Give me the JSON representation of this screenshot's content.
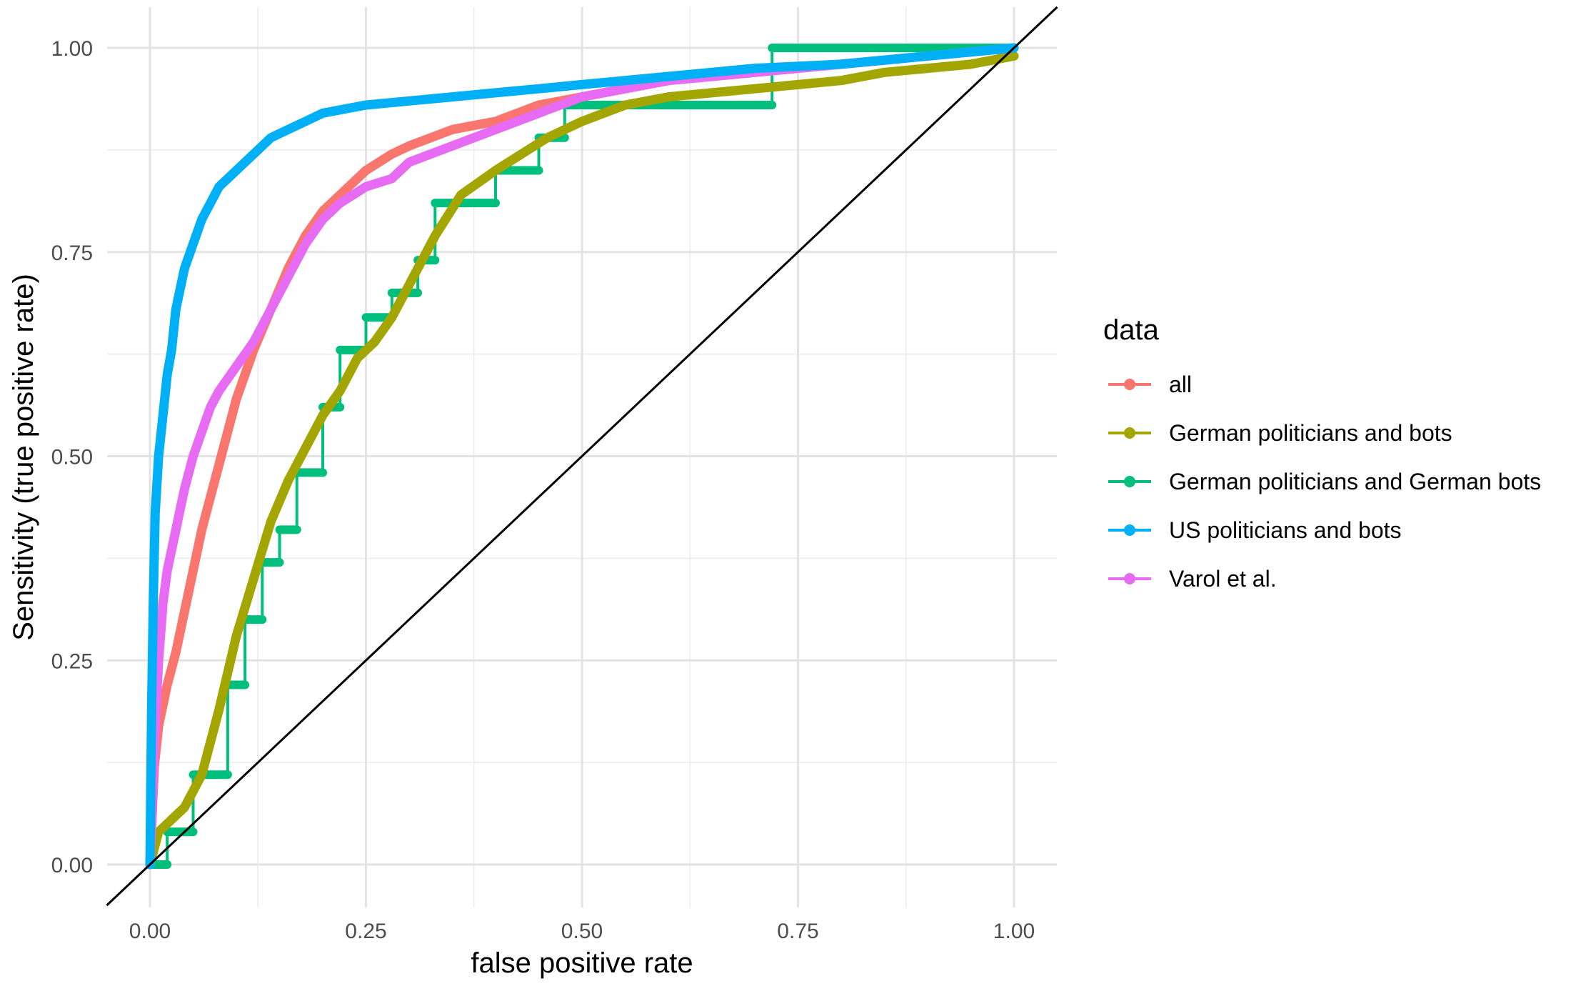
{
  "chart_data": {
    "type": "line",
    "title": "",
    "xlabel": "false positive rate",
    "ylabel": "Sensitivity (true positive rate)",
    "xlim": [
      0,
      1
    ],
    "ylim": [
      0,
      1
    ],
    "xticks": [
      "0.00",
      "0.25",
      "0.50",
      "0.75",
      "1.00"
    ],
    "yticks": [
      "0.00",
      "0.25",
      "0.50",
      "0.75",
      "1.00"
    ],
    "grid": true,
    "legend": {
      "title": "data",
      "position": "right"
    },
    "reference_line": {
      "label": "",
      "x": [
        0,
        1
      ],
      "y": [
        0,
        1
      ]
    },
    "series": [
      {
        "name": "all",
        "color": "#F8766D",
        "x": [
          0,
          0.005,
          0.01,
          0.02,
          0.03,
          0.04,
          0.05,
          0.06,
          0.07,
          0.08,
          0.09,
          0.1,
          0.12,
          0.14,
          0.16,
          0.18,
          0.2,
          0.22,
          0.25,
          0.28,
          0.3,
          0.35,
          0.4,
          0.45,
          0.5,
          0.6,
          0.7,
          0.8,
          0.9,
          1.0
        ],
        "y": [
          0,
          0.12,
          0.17,
          0.22,
          0.26,
          0.31,
          0.36,
          0.41,
          0.45,
          0.49,
          0.53,
          0.57,
          0.63,
          0.68,
          0.73,
          0.77,
          0.8,
          0.82,
          0.85,
          0.87,
          0.88,
          0.9,
          0.91,
          0.93,
          0.94,
          0.96,
          0.97,
          0.98,
          0.99,
          1.0
        ]
      },
      {
        "name": "German politicians and bots",
        "color": "#A3A500",
        "x": [
          0,
          0.01,
          0.02,
          0.04,
          0.06,
          0.08,
          0.1,
          0.12,
          0.14,
          0.16,
          0.18,
          0.2,
          0.22,
          0.24,
          0.26,
          0.28,
          0.3,
          0.33,
          0.36,
          0.4,
          0.43,
          0.46,
          0.5,
          0.55,
          0.6,
          0.65,
          0.7,
          0.75,
          0.8,
          0.85,
          0.9,
          0.95,
          1.0
        ],
        "y": [
          0,
          0.04,
          0.05,
          0.07,
          0.11,
          0.19,
          0.28,
          0.35,
          0.42,
          0.47,
          0.51,
          0.55,
          0.58,
          0.62,
          0.64,
          0.67,
          0.71,
          0.77,
          0.82,
          0.85,
          0.87,
          0.89,
          0.91,
          0.93,
          0.94,
          0.945,
          0.95,
          0.955,
          0.96,
          0.97,
          0.975,
          0.98,
          0.99
        ]
      },
      {
        "name": "German politicians and German bots",
        "color": "#00BF7D",
        "x": [
          0,
          0.02,
          0.02,
          0.05,
          0.05,
          0.09,
          0.09,
          0.11,
          0.11,
          0.13,
          0.13,
          0.15,
          0.15,
          0.17,
          0.17,
          0.2,
          0.2,
          0.22,
          0.22,
          0.25,
          0.25,
          0.28,
          0.28,
          0.31,
          0.31,
          0.33,
          0.33,
          0.4,
          0.4,
          0.45,
          0.45,
          0.48,
          0.48,
          0.72,
          0.72,
          1.0
        ],
        "y": [
          0,
          0,
          0.04,
          0.04,
          0.11,
          0.11,
          0.22,
          0.22,
          0.3,
          0.3,
          0.37,
          0.37,
          0.41,
          0.41,
          0.48,
          0.48,
          0.56,
          0.56,
          0.63,
          0.63,
          0.67,
          0.67,
          0.7,
          0.7,
          0.74,
          0.74,
          0.81,
          0.81,
          0.85,
          0.85,
          0.89,
          0.89,
          0.93,
          0.93,
          1.0,
          1.0
        ]
      },
      {
        "name": "US politicians and bots",
        "color": "#00B0F6",
        "x": [
          0,
          0.002,
          0.004,
          0.006,
          0.01,
          0.015,
          0.02,
          0.025,
          0.03,
          0.04,
          0.05,
          0.06,
          0.08,
          0.1,
          0.12,
          0.14,
          0.16,
          0.18,
          0.2,
          0.25,
          0.3,
          0.35,
          0.4,
          0.45,
          0.5,
          0.55,
          0.6,
          0.7,
          0.8,
          0.9,
          1.0
        ],
        "y": [
          0,
          0.2,
          0.33,
          0.43,
          0.5,
          0.55,
          0.6,
          0.63,
          0.68,
          0.73,
          0.76,
          0.79,
          0.83,
          0.85,
          0.87,
          0.89,
          0.9,
          0.91,
          0.92,
          0.93,
          0.935,
          0.94,
          0.945,
          0.95,
          0.955,
          0.96,
          0.965,
          0.975,
          0.98,
          0.99,
          1.0
        ]
      },
      {
        "name": "Varol et al.",
        "color": "#E76BF3",
        "x": [
          0,
          0.005,
          0.01,
          0.015,
          0.02,
          0.03,
          0.04,
          0.05,
          0.06,
          0.07,
          0.08,
          0.1,
          0.12,
          0.14,
          0.16,
          0.18,
          0.2,
          0.22,
          0.25,
          0.28,
          0.3,
          0.35,
          0.4,
          0.45,
          0.5,
          0.55,
          0.6,
          0.7,
          0.8,
          0.9,
          1.0
        ],
        "y": [
          0,
          0.15,
          0.25,
          0.32,
          0.36,
          0.41,
          0.46,
          0.5,
          0.53,
          0.56,
          0.58,
          0.61,
          0.64,
          0.68,
          0.72,
          0.76,
          0.79,
          0.81,
          0.83,
          0.84,
          0.86,
          0.88,
          0.9,
          0.92,
          0.94,
          0.95,
          0.96,
          0.97,
          0.98,
          0.99,
          1.0
        ]
      }
    ]
  }
}
